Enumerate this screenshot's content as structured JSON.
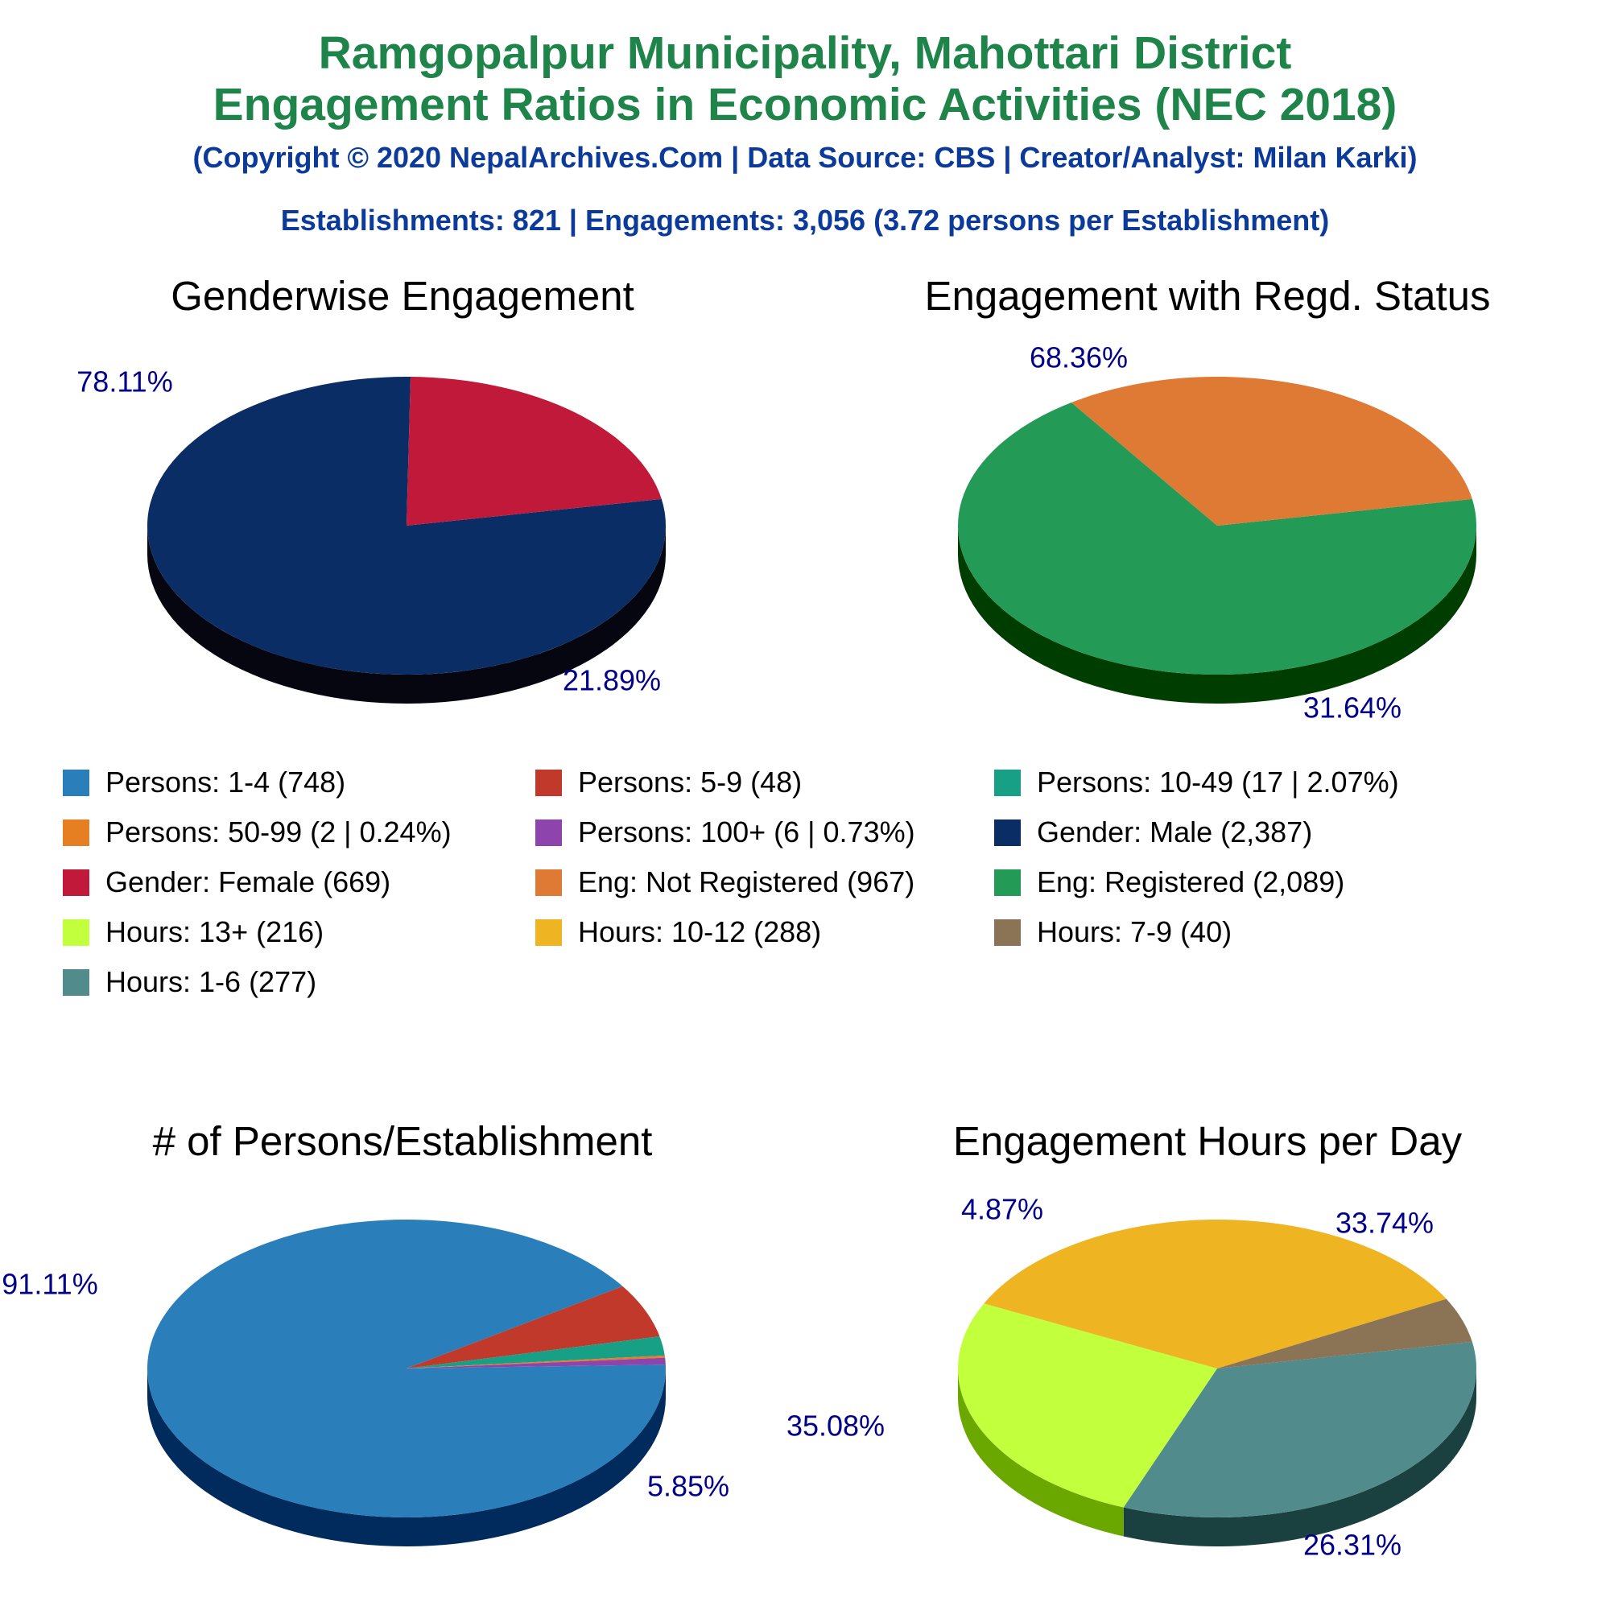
{
  "header": {
    "title_line1": "Ramgopalpur Municipality, Mahottari District",
    "title_line2": "Engagement Ratios in Economic Activities (NEC 2018)",
    "copyright": "(Copyright © 2020 NepalArchives.Com | Data Source: CBS | Creator/Analyst: Milan Karki)",
    "summary": "Establishments: 821 | Engagements: 3,056 (3.72 persons per Establishment)"
  },
  "legend": [
    {
      "label": "Persons: 1-4 (748)",
      "color": "#2a7fba"
    },
    {
      "label": "Persons: 5-9 (48)",
      "color": "#c0392b"
    },
    {
      "label": "Persons: 10-49 (17 | 2.07%)",
      "color": "#17a086"
    },
    {
      "label": "Persons: 50-99 (2 | 0.24%)",
      "color": "#e67e22"
    },
    {
      "label": "Persons: 100+ (6 | 0.73%)",
      "color": "#8e44ad"
    },
    {
      "label": "Gender: Male (2,387)",
      "color": "#0a2d66"
    },
    {
      "label": "Gender: Female (669)",
      "color": "#c0193a"
    },
    {
      "label": "Eng: Not Registered (967)",
      "color": "#de7a34"
    },
    {
      "label": "Eng: Registered (2,089)",
      "color": "#239b56"
    },
    {
      "label": "Hours: 13+ (216)",
      "color": "#c2ff3d"
    },
    {
      "label": "Hours: 10-12 (288)",
      "color": "#eeb422"
    },
    {
      "label": "Hours: 7-9 (40)",
      "color": "#8b7355"
    },
    {
      "label": "Hours: 1-6 (277)",
      "color": "#528b8b"
    }
  ],
  "chart_data": [
    {
      "type": "pie",
      "title": "Genderwise Engagement",
      "slices": [
        {
          "name": "Gender: Male",
          "value": 2387,
          "percent_label": "78.11%",
          "color": "#0a2d66",
          "side": "#05060f"
        },
        {
          "name": "Gender: Female",
          "value": 669,
          "percent_label": "21.89%",
          "color": "#c0193a",
          "side": "#6b0000"
        }
      ]
    },
    {
      "type": "pie",
      "title": "Engagement with Regd. Status",
      "slices": [
        {
          "name": "Eng: Registered",
          "value": 2089,
          "percent_label": "68.36%",
          "color": "#239b56",
          "side": "#003d00"
        },
        {
          "name": "Eng: Not Registered",
          "value": 967,
          "percent_label": "31.64%",
          "color": "#de7a34",
          "side": "#7a1a00"
        }
      ]
    },
    {
      "type": "pie",
      "title": "# of Persons/Establishment",
      "slices": [
        {
          "name": "Persons: 1-4",
          "value": 748,
          "percent_label": "91.11%",
          "color": "#2a7fba",
          "side": "#002b5c"
        },
        {
          "name": "Persons: 5-9",
          "value": 48,
          "percent_label": "5.85%",
          "color": "#c0392b",
          "side": "#6b0000"
        },
        {
          "name": "Persons: 10-49",
          "value": 17,
          "percent_label": "",
          "color": "#17a086",
          "side": "#004d33"
        },
        {
          "name": "Persons: 50-99",
          "value": 2,
          "percent_label": "",
          "color": "#e67e22",
          "side": "#7a2a00"
        },
        {
          "name": "Persons: 100+",
          "value": 6,
          "percent_label": "",
          "color": "#8e44ad",
          "side": "#3b0055"
        }
      ]
    },
    {
      "type": "pie",
      "title": "Engagement Hours per Day",
      "slices": [
        {
          "name": "Hours: 1-6",
          "value": 277,
          "percent_label": "33.74%",
          "color": "#528b8b",
          "side": "#1a4040"
        },
        {
          "name": "Hours: 13+",
          "value": 216,
          "percent_label": "26.31%",
          "color": "#c2ff3d",
          "side": "#6aa800"
        },
        {
          "name": "Hours: 10-12",
          "value": 288,
          "percent_label": "35.08%",
          "color": "#eeb422",
          "side": "#9a5a00"
        },
        {
          "name": "Hours: 7-9",
          "value": 40,
          "percent_label": "4.87%",
          "color": "#8b7355",
          "side": "#3d2a10"
        }
      ]
    }
  ]
}
